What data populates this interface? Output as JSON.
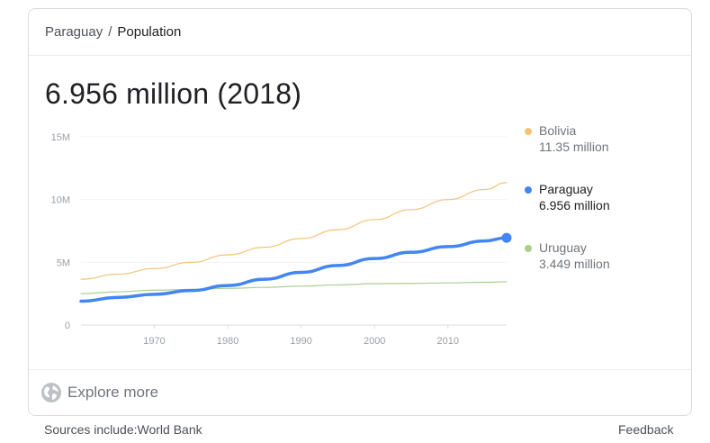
{
  "breadcrumb": {
    "country": "Paraguay",
    "separator": "/",
    "topic": "Population"
  },
  "headline": "6.956 million (2018)",
  "explore_label": "Explore more",
  "footer": {
    "sources": "Sources include:World Bank",
    "feedback": "Feedback"
  },
  "legend": [
    {
      "name": "Bolivia",
      "value": "11.35 million",
      "color": "#f6c27a"
    },
    {
      "name": "Paraguay",
      "value": "6.956 million",
      "color": "#4285f4"
    },
    {
      "name": "Uruguay",
      "value": "3.449 million",
      "color": "#a8d08d"
    }
  ],
  "chart_data": {
    "type": "line",
    "title": "",
    "xlabel": "",
    "ylabel": "",
    "xlim": [
      1960,
      2018
    ],
    "ylim": [
      0,
      15
    ],
    "y_ticks": [
      {
        "value": 0,
        "label": "0"
      },
      {
        "value": 5,
        "label": "5M"
      },
      {
        "value": 10,
        "label": "10M"
      },
      {
        "value": 15,
        "label": "15M"
      }
    ],
    "x_ticks": [
      {
        "value": 1970,
        "label": "1970"
      },
      {
        "value": 1980,
        "label": "1980"
      },
      {
        "value": 1990,
        "label": "1990"
      },
      {
        "value": 2000,
        "label": "2000"
      },
      {
        "value": 2010,
        "label": "2010"
      }
    ],
    "grid": true,
    "legend_position": "right",
    "highlighted_series": "Paraguay",
    "series": [
      {
        "name": "Bolivia",
        "color": "#f6c27a",
        "x": [
          1960,
          1965,
          1970,
          1975,
          1980,
          1985,
          1990,
          1995,
          2000,
          2005,
          2010,
          2015,
          2018
        ],
        "y": [
          3.65,
          4.05,
          4.5,
          5.0,
          5.6,
          6.2,
          6.9,
          7.6,
          8.4,
          9.2,
          10.0,
          10.8,
          11.35
        ]
      },
      {
        "name": "Paraguay",
        "color": "#4285f4",
        "x": [
          1960,
          1965,
          1970,
          1975,
          1980,
          1985,
          1990,
          1995,
          2000,
          2005,
          2010,
          2015,
          2018
        ],
        "y": [
          1.9,
          2.2,
          2.45,
          2.75,
          3.15,
          3.65,
          4.2,
          4.75,
          5.3,
          5.8,
          6.25,
          6.7,
          6.956
        ]
      },
      {
        "name": "Uruguay",
        "color": "#a8d08d",
        "x": [
          1960,
          1965,
          1970,
          1975,
          1980,
          1985,
          1990,
          1995,
          2000,
          2005,
          2010,
          2015,
          2018
        ],
        "y": [
          2.5,
          2.65,
          2.78,
          2.84,
          2.92,
          3.0,
          3.1,
          3.2,
          3.3,
          3.32,
          3.36,
          3.41,
          3.449
        ]
      }
    ]
  }
}
